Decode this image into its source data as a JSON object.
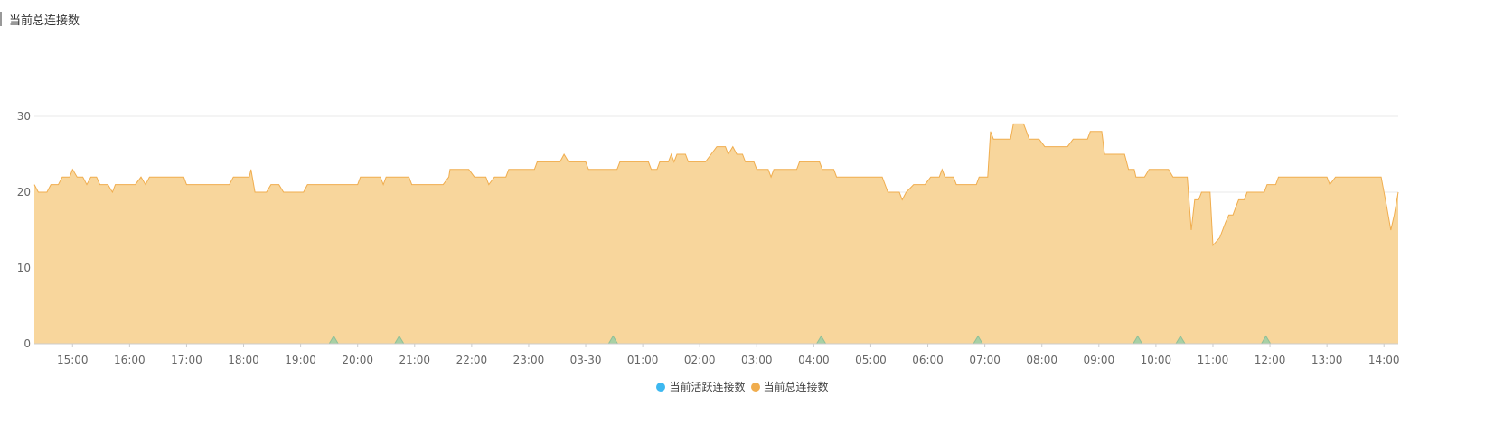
{
  "header": {
    "title": "当前总连接数"
  },
  "chart_data": {
    "type": "area",
    "title": "当前总连接数",
    "xlabel": "",
    "ylabel": "",
    "ylim": [
      0,
      30
    ],
    "yticks": [
      0,
      10,
      20,
      30
    ],
    "x_tick_labels": [
      "15:00",
      "16:00",
      "17:00",
      "18:00",
      "19:00",
      "20:00",
      "21:00",
      "22:00",
      "23:00",
      "03-30",
      "01:00",
      "02:00",
      "03:00",
      "04:00",
      "05:00",
      "06:00",
      "07:00",
      "08:00",
      "09:00",
      "10:00",
      "11:00",
      "12:00",
      "13:00",
      "14:00"
    ],
    "x_range_hours": [
      14.33,
      38.25
    ],
    "series": [
      {
        "name": "当前活跃连接数",
        "color": "#3db8f0",
        "fill": "#9ecfa6",
        "points": [
          [
            14.33,
            0
          ],
          [
            19.5,
            0
          ],
          [
            19.58,
            1
          ],
          [
            19.66,
            0
          ],
          [
            20.65,
            0
          ],
          [
            20.73,
            1
          ],
          [
            20.81,
            0
          ],
          [
            24.4,
            0
          ],
          [
            24.48,
            1
          ],
          [
            24.56,
            0
          ],
          [
            28.05,
            0
          ],
          [
            28.13,
            1
          ],
          [
            28.21,
            0
          ],
          [
            30.8,
            0
          ],
          [
            30.88,
            1
          ],
          [
            30.96,
            0
          ],
          [
            33.6,
            0
          ],
          [
            33.68,
            1
          ],
          [
            33.76,
            0
          ],
          [
            34.35,
            0
          ],
          [
            34.43,
            1
          ],
          [
            34.51,
            0
          ],
          [
            35.85,
            0
          ],
          [
            35.93,
            1
          ],
          [
            36.01,
            0
          ],
          [
            38.25,
            0
          ]
        ]
      },
      {
        "name": "当前总连接数",
        "color": "#f0ad4e",
        "fill": "#f8d69c",
        "points": [
          [
            14.33,
            21
          ],
          [
            14.4,
            20
          ],
          [
            14.55,
            20
          ],
          [
            14.62,
            21
          ],
          [
            14.75,
            21
          ],
          [
            14.82,
            22
          ],
          [
            14.95,
            22
          ],
          [
            15.0,
            23
          ],
          [
            15.08,
            22
          ],
          [
            15.18,
            22
          ],
          [
            15.25,
            21
          ],
          [
            15.32,
            22
          ],
          [
            15.42,
            22
          ],
          [
            15.48,
            21
          ],
          [
            15.62,
            21
          ],
          [
            15.7,
            20
          ],
          [
            15.75,
            21
          ],
          [
            16.1,
            21
          ],
          [
            16.2,
            22
          ],
          [
            16.28,
            21
          ],
          [
            16.35,
            22
          ],
          [
            16.95,
            22
          ],
          [
            17.0,
            21
          ],
          [
            17.75,
            21
          ],
          [
            17.82,
            22
          ],
          [
            18.1,
            22
          ],
          [
            18.13,
            23
          ],
          [
            18.2,
            20
          ],
          [
            18.4,
            20
          ],
          [
            18.48,
            21
          ],
          [
            18.62,
            21
          ],
          [
            18.7,
            20
          ],
          [
            19.05,
            20
          ],
          [
            19.12,
            21
          ],
          [
            20.0,
            21
          ],
          [
            20.05,
            22
          ],
          [
            20.4,
            22
          ],
          [
            20.45,
            21
          ],
          [
            20.5,
            22
          ],
          [
            20.9,
            22
          ],
          [
            20.95,
            21
          ],
          [
            21.5,
            21
          ],
          [
            21.6,
            22
          ],
          [
            21.62,
            23
          ],
          [
            21.95,
            23
          ],
          [
            22.05,
            22
          ],
          [
            22.25,
            22
          ],
          [
            22.3,
            21
          ],
          [
            22.4,
            22
          ],
          [
            22.6,
            22
          ],
          [
            22.65,
            23
          ],
          [
            23.1,
            23
          ],
          [
            23.15,
            24
          ],
          [
            23.55,
            24
          ],
          [
            23.62,
            25
          ],
          [
            23.7,
            24
          ],
          [
            24.0,
            24
          ],
          [
            24.05,
            23
          ],
          [
            24.55,
            23
          ],
          [
            24.6,
            24
          ],
          [
            25.1,
            24
          ],
          [
            25.15,
            23
          ],
          [
            25.25,
            23
          ],
          [
            25.3,
            24
          ],
          [
            25.45,
            24
          ],
          [
            25.5,
            25
          ],
          [
            25.55,
            24
          ],
          [
            25.6,
            25
          ],
          [
            25.75,
            25
          ],
          [
            25.8,
            24
          ],
          [
            26.1,
            24
          ],
          [
            26.2,
            25
          ],
          [
            26.3,
            26
          ],
          [
            26.45,
            26
          ],
          [
            26.5,
            25
          ],
          [
            26.58,
            26
          ],
          [
            26.65,
            25
          ],
          [
            26.75,
            25
          ],
          [
            26.8,
            24
          ],
          [
            26.95,
            24
          ],
          [
            27.0,
            23
          ],
          [
            27.2,
            23
          ],
          [
            27.25,
            22
          ],
          [
            27.3,
            23
          ],
          [
            27.7,
            23
          ],
          [
            27.75,
            24
          ],
          [
            28.1,
            24
          ],
          [
            28.15,
            23
          ],
          [
            28.35,
            23
          ],
          [
            28.4,
            22
          ],
          [
            29.2,
            22
          ],
          [
            29.3,
            20
          ],
          [
            29.5,
            20
          ],
          [
            29.55,
            19
          ],
          [
            29.62,
            20
          ],
          [
            29.75,
            21
          ],
          [
            29.95,
            21
          ],
          [
            30.05,
            22
          ],
          [
            30.2,
            22
          ],
          [
            30.25,
            23
          ],
          [
            30.3,
            22
          ],
          [
            30.45,
            22
          ],
          [
            30.5,
            21
          ],
          [
            30.85,
            21
          ],
          [
            30.9,
            22
          ],
          [
            31.05,
            22
          ],
          [
            31.1,
            28
          ],
          [
            31.15,
            27
          ],
          [
            31.45,
            27
          ],
          [
            31.5,
            29
          ],
          [
            31.68,
            29
          ],
          [
            31.78,
            27
          ],
          [
            31.95,
            27
          ],
          [
            32.05,
            26
          ],
          [
            32.45,
            26
          ],
          [
            32.55,
            27
          ],
          [
            32.8,
            27
          ],
          [
            32.85,
            28
          ],
          [
            33.05,
            28
          ],
          [
            33.1,
            25
          ],
          [
            33.45,
            25
          ],
          [
            33.52,
            23
          ],
          [
            33.62,
            23
          ],
          [
            33.65,
            22
          ],
          [
            33.8,
            22
          ],
          [
            33.88,
            23
          ],
          [
            34.22,
            23
          ],
          [
            34.3,
            22
          ],
          [
            34.55,
            22
          ],
          [
            34.58,
            19
          ],
          [
            34.62,
            15
          ],
          [
            34.68,
            19
          ],
          [
            34.75,
            19
          ],
          [
            34.8,
            20
          ],
          [
            34.95,
            20
          ],
          [
            35.0,
            13
          ],
          [
            35.12,
            14
          ],
          [
            35.22,
            16
          ],
          [
            35.28,
            17
          ],
          [
            35.35,
            17
          ],
          [
            35.4,
            18
          ],
          [
            35.45,
            19
          ],
          [
            35.55,
            19
          ],
          [
            35.6,
            20
          ],
          [
            35.9,
            20
          ],
          [
            35.95,
            21
          ],
          [
            36.1,
            21
          ],
          [
            36.15,
            22
          ],
          [
            37.0,
            22
          ],
          [
            37.05,
            21
          ],
          [
            37.15,
            22
          ],
          [
            37.85,
            22
          ],
          [
            37.95,
            22
          ],
          [
            38.05,
            18
          ],
          [
            38.12,
            15
          ],
          [
            38.18,
            17
          ],
          [
            38.25,
            20
          ]
        ]
      }
    ],
    "legend_position": "bottom-center",
    "grid": true
  },
  "legend": [
    {
      "label": "当前活跃连接数",
      "color": "#3db8f0"
    },
    {
      "label": "当前总连接数",
      "color": "#f0ad4e"
    }
  ]
}
